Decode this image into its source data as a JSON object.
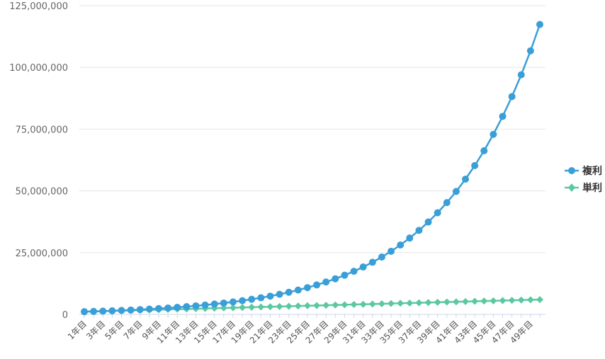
{
  "chart_data": {
    "type": "line",
    "x": [
      "1年目",
      "2年目",
      "3年目",
      "4年目",
      "5年目",
      "6年目",
      "7年目",
      "8年目",
      "9年目",
      "10年目",
      "11年目",
      "12年目",
      "13年目",
      "14年目",
      "15年目",
      "16年目",
      "17年目",
      "18年目",
      "19年目",
      "20年目",
      "21年目",
      "22年目",
      "23年目",
      "24年目",
      "25年目",
      "26年目",
      "27年目",
      "28年目",
      "29年目",
      "30年目",
      "31年目",
      "32年目",
      "33年目",
      "34年目",
      "35年目",
      "36年目",
      "37年目",
      "38年目",
      "39年目",
      "40年目",
      "41年目",
      "42年目",
      "43年目",
      "44年目",
      "45年目",
      "46年目",
      "47年目",
      "48年目",
      "49年目",
      "50年目"
    ],
    "xticks_shown": [
      "1年目",
      "3年目",
      "5年目",
      "7年目",
      "9年目",
      "11年目",
      "13年目",
      "15年目",
      "17年目",
      "19年目",
      "21年目",
      "23年目",
      "25年目",
      "27年目",
      "29年目",
      "31年目",
      "33年目",
      "35年目",
      "37年目",
      "39年目",
      "41年目",
      "43年目",
      "45年目",
      "47年目",
      "49年目"
    ],
    "yticks": [
      "0",
      "25,000,000",
      "50,000,000",
      "75,000,000",
      "100,000,000",
      "125,000,000"
    ],
    "ylim": [
      0,
      125000000
    ],
    "series": [
      {
        "name": "複利",
        "color": "#3a9fd8",
        "marker": "circle",
        "values": [
          1100000,
          1210000,
          1331000,
          1464100,
          1610510,
          1771561,
          1948717,
          2143589,
          2357948,
          2593742,
          2853117,
          3138428,
          3452271,
          3797498,
          4177248,
          4594973,
          5054470,
          5559917,
          6115909,
          6727500,
          7400250,
          8140275,
          8954302,
          9849733,
          10834706,
          11918177,
          13109994,
          14420994,
          15863093,
          17449402,
          19194342,
          21113777,
          23225154,
          25547670,
          28102437,
          30912681,
          34003949,
          37404343,
          41144778,
          45259256,
          49785181,
          54763699,
          60240069,
          66264076,
          72890484,
          80179532,
          88197485,
          97017234,
          106718957,
          117390853
        ]
      },
      {
        "name": "単利",
        "color": "#5cc8a0",
        "marker": "diamond",
        "values": [
          1100000,
          1200000,
          1300000,
          1400000,
          1500000,
          1600000,
          1700000,
          1800000,
          1900000,
          2000000,
          2100000,
          2200000,
          2300000,
          2400000,
          2500000,
          2600000,
          2700000,
          2800000,
          2900000,
          3000000,
          3100000,
          3200000,
          3300000,
          3400000,
          3500000,
          3600000,
          3700000,
          3800000,
          3900000,
          4000000,
          4100000,
          4200000,
          4300000,
          4400000,
          4500000,
          4600000,
          4700000,
          4800000,
          4900000,
          5000000,
          5100000,
          5200000,
          5300000,
          5400000,
          5500000,
          5600000,
          5700000,
          5800000,
          5900000,
          6000000
        ]
      }
    ],
    "grid": true,
    "legend_position": "right"
  }
}
